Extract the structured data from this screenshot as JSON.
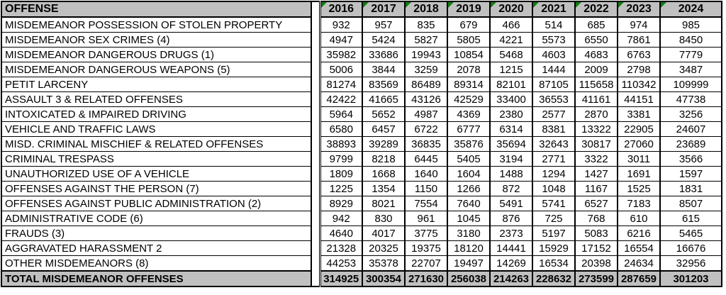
{
  "chart_data": {
    "type": "table",
    "columns": [
      "OFFENSE",
      "2016",
      "2017",
      "2018",
      "2019",
      "2020",
      "2021",
      "2022",
      "2023",
      "2024"
    ],
    "rows": [
      {
        "label": "MISDEMEANOR POSSESSION OF STOLEN PROPERTY",
        "values": [
          932,
          957,
          835,
          679,
          466,
          514,
          685,
          974,
          985
        ]
      },
      {
        "label": "MISDEMEANOR SEX CRIMES (4)",
        "values": [
          4947,
          5424,
          5827,
          5805,
          4221,
          5573,
          6550,
          7861,
          8450
        ]
      },
      {
        "label": "MISDEMEANOR DANGEROUS DRUGS (1)",
        "values": [
          35982,
          33686,
          19943,
          10854,
          5468,
          4603,
          4683,
          6763,
          7779
        ]
      },
      {
        "label": "MISDEMEANOR DANGEROUS WEAPONS (5)",
        "values": [
          5006,
          3844,
          3259,
          2078,
          1215,
          1444,
          2009,
          2798,
          3487
        ]
      },
      {
        "label": "PETIT LARCENY",
        "values": [
          81274,
          83569,
          86489,
          89314,
          82101,
          87105,
          115658,
          110342,
          109999
        ]
      },
      {
        "label": "ASSAULT 3 & RELATED OFFENSES",
        "values": [
          42422,
          41665,
          43126,
          42529,
          33400,
          36553,
          41161,
          44151,
          47738
        ]
      },
      {
        "label": "INTOXICATED & IMPAIRED DRIVING",
        "values": [
          5964,
          5652,
          4987,
          4369,
          2380,
          2577,
          2870,
          3381,
          3256
        ]
      },
      {
        "label": "VEHICLE AND TRAFFIC LAWS",
        "values": [
          6580,
          6457,
          6722,
          6777,
          6314,
          8381,
          13322,
          22905,
          24607
        ]
      },
      {
        "label": "MISD. CRIMINAL MISCHIEF & RELATED OFFENSES",
        "values": [
          38893,
          39289,
          36835,
          35876,
          35694,
          32643,
          30817,
          27060,
          23689
        ]
      },
      {
        "label": "CRIMINAL TRESPASS",
        "values": [
          9799,
          8218,
          6445,
          5405,
          3194,
          2771,
          3322,
          3011,
          3566
        ]
      },
      {
        "label": "UNAUTHORIZED USE OF A VEHICLE",
        "values": [
          1809,
          1668,
          1640,
          1604,
          1488,
          1294,
          1427,
          1691,
          1597
        ]
      },
      {
        "label": "OFFENSES AGAINST THE PERSON (7)",
        "values": [
          1225,
          1354,
          1150,
          1266,
          872,
          1048,
          1167,
          1525,
          1831
        ]
      },
      {
        "label": "OFFENSES AGAINST PUBLIC ADMINISTRATION (2)",
        "values": [
          8929,
          8021,
          7554,
          7640,
          5491,
          5741,
          6527,
          7183,
          8507
        ]
      },
      {
        "label": "ADMINISTRATIVE CODE (6)",
        "values": [
          942,
          830,
          961,
          1045,
          876,
          725,
          768,
          610,
          615
        ]
      },
      {
        "label": "FRAUDS (3)",
        "values": [
          4640,
          4017,
          3775,
          3180,
          2373,
          5197,
          5083,
          6216,
          5465
        ]
      },
      {
        "label": "AGGRAVATED HARASSMENT 2",
        "values": [
          21328,
          20325,
          19375,
          18120,
          14441,
          15929,
          17152,
          16554,
          16676
        ]
      },
      {
        "label": "OTHER MISDEMEANORS (8)",
        "values": [
          44253,
          35378,
          22707,
          19497,
          14269,
          16534,
          20398,
          24634,
          32956
        ]
      }
    ],
    "total": {
      "label": "TOTAL MISDEMEANOR OFFENSES",
      "values": [
        314925,
        300354,
        271630,
        256038,
        214263,
        228632,
        273599,
        287659,
        301203
      ]
    },
    "layout": {
      "grid": "on",
      "header_has_error_indicator_triangles": true,
      "number_format": "plain-no-thousands-separator"
    }
  },
  "style": {
    "header_bg": "#c0c0c0",
    "total_bg": "#c0c0c0",
    "border_color": "#000000",
    "indicator_color": "#107c10",
    "text_color": "#000000"
  },
  "icons": {
    "error_indicator": "green-triangle-top-left"
  }
}
